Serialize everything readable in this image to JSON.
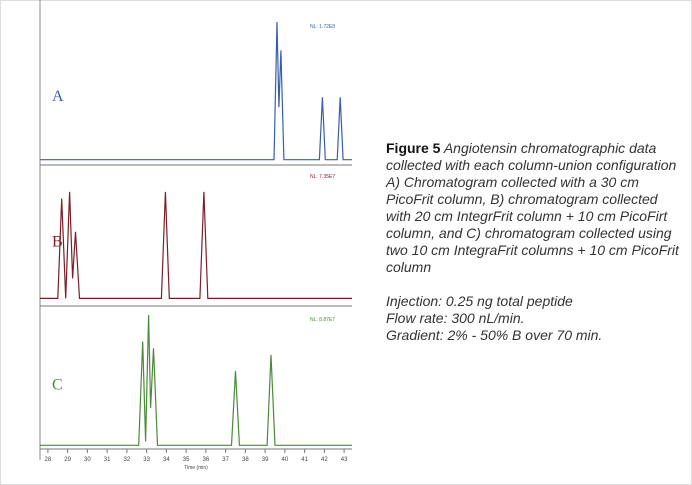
{
  "chart_data": [
    {
      "type": "line",
      "label": "A",
      "annotation": "NL: 1.72E8",
      "color": "#3a5fa8",
      "xlim": [
        27.6,
        43.4
      ],
      "ylim": [
        0,
        100
      ],
      "x": [
        27.6,
        39.45,
        39.6,
        39.7,
        39.8,
        39.95,
        41.75,
        41.9,
        42.05,
        42.65,
        42.8,
        42.95,
        43.4
      ],
      "values": [
        3,
        3,
        100,
        40,
        80,
        3,
        3,
        47,
        3,
        3,
        47,
        3,
        3
      ]
    },
    {
      "type": "line",
      "label": "B",
      "annotation": "NL: 7.35E7",
      "color": "#7a1f2a",
      "xlim": [
        27.6,
        43.4
      ],
      "ylim": [
        0,
        100
      ],
      "x": [
        27.6,
        28.5,
        28.7,
        28.9,
        29.1,
        29.25,
        29.4,
        29.6,
        33.75,
        33.95,
        34.15,
        35.7,
        35.9,
        36.1,
        43.4
      ],
      "values": [
        5,
        5,
        80,
        5,
        85,
        20,
        55,
        5,
        5,
        85,
        5,
        5,
        85,
        5,
        5
      ]
    },
    {
      "type": "line",
      "label": "C",
      "annotation": "NL: 8.87E7",
      "color": "#4b8a3a",
      "xlim": [
        27.6,
        43.4
      ],
      "ylim": [
        0,
        100
      ],
      "x": [
        27.6,
        32.6,
        32.8,
        32.95,
        33.1,
        33.2,
        33.35,
        33.55,
        37.3,
        37.5,
        37.7,
        39.1,
        39.3,
        39.5,
        43.4
      ],
      "values": [
        2,
        2,
        80,
        5,
        100,
        30,
        75,
        2,
        2,
        58,
        2,
        2,
        70,
        2,
        2
      ],
      "xlabel": "Time (min)",
      "xticks": [
        28,
        29,
        30,
        31,
        32,
        33,
        34,
        35,
        36,
        37,
        38,
        39,
        40,
        41,
        42,
        43
      ]
    }
  ],
  "caption": {
    "figure_label": "Figure 5",
    "text": "Angiotensin chromatographic data collected with each column-union configuration A) Chromatogram collected with a 30 cm PicoFrit column, B) chromatogram collected with 20 cm IntegrFrit column + 10 cm PicoFirt column, and C) chromatogram collected using two 10 cm IntegraFrit columns + 10 cm PicoFrit column",
    "notes": [
      "Injection: 0.25 ng total peptide",
      "Flow rate: 300 nL/min.",
      "Gradient: 2% - 50% B over 70 min."
    ]
  }
}
